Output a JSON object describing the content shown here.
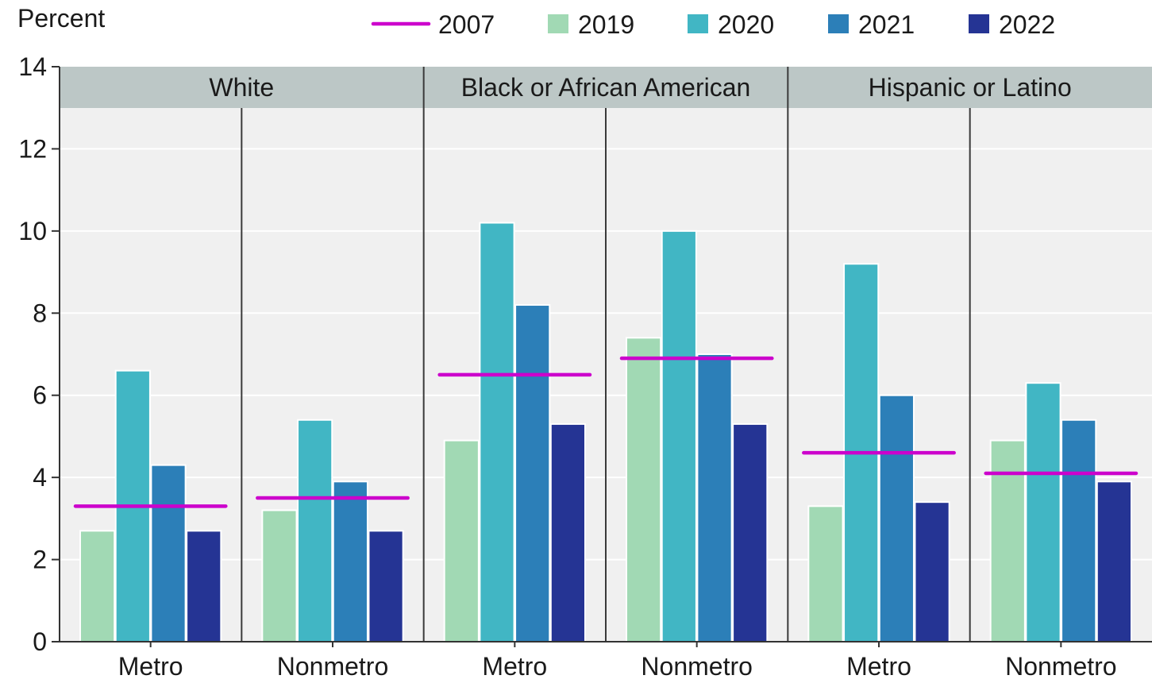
{
  "chart_data": {
    "type": "bar",
    "ylabel": "Percent",
    "ylim": [
      0,
      14
    ],
    "yticks": [
      "0",
      "2",
      "4",
      "6",
      "8",
      "10",
      "12",
      "14"
    ],
    "grid": true,
    "legend_position": "top",
    "legend": [
      {
        "name": "2007",
        "kind": "line",
        "color": "#cc00cc"
      },
      {
        "name": "2019",
        "kind": "bar",
        "color": "#a1d9b4"
      },
      {
        "name": "2020",
        "kind": "bar",
        "color": "#41b6c4"
      },
      {
        "name": "2021",
        "kind": "bar",
        "color": "#2c7fb8"
      },
      {
        "name": "2022",
        "kind": "bar",
        "color": "#253494"
      }
    ],
    "groups": [
      {
        "name": "White",
        "subgroups": [
          {
            "name": "Metro",
            "line_2007": 3.3,
            "values": [
              2.7,
              6.6,
              4.3,
              2.7
            ]
          },
          {
            "name": "Nonmetro",
            "line_2007": 3.5,
            "values": [
              3.2,
              5.4,
              3.9,
              2.7
            ]
          }
        ]
      },
      {
        "name": "Black or African American",
        "subgroups": [
          {
            "name": "Metro",
            "line_2007": 6.5,
            "values": [
              4.9,
              10.2,
              8.2,
              5.3
            ]
          },
          {
            "name": "Nonmetro",
            "line_2007": 6.9,
            "values": [
              7.4,
              10.0,
              7.0,
              5.3
            ]
          }
        ]
      },
      {
        "name": "Hispanic or Latino",
        "subgroups": [
          {
            "name": "Metro",
            "line_2007": 4.6,
            "values": [
              3.3,
              9.2,
              6.0,
              3.4
            ]
          },
          {
            "name": "Nonmetro",
            "line_2007": 4.1,
            "values": [
              4.9,
              6.3,
              5.4,
              3.9
            ]
          }
        ]
      }
    ]
  }
}
